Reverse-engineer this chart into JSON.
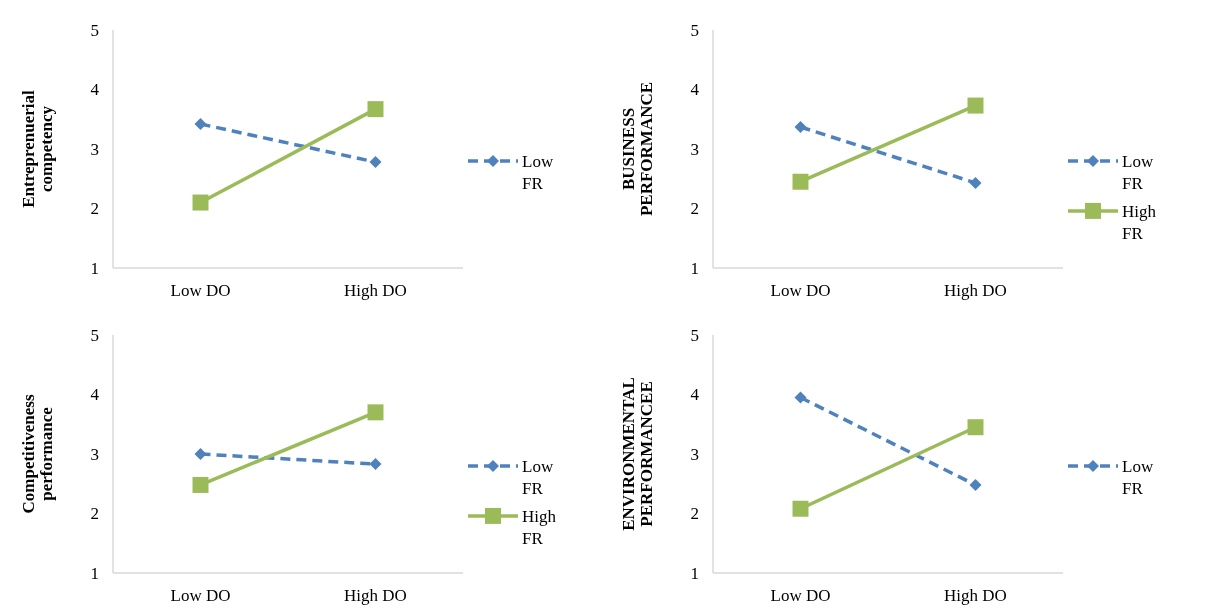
{
  "chart_data": [
    {
      "type": "line",
      "ylabel": "Entreprenuerial competency",
      "categories": [
        "Low DO",
        "High DO"
      ],
      "ylim": [
        1,
        5
      ],
      "yticks": [
        1,
        2,
        3,
        4,
        5
      ],
      "legend": "right",
      "series": [
        {
          "name": "Low FR",
          "color": "#4f81bd",
          "values": [
            3.42,
            2.78
          ],
          "line_style": "dashed",
          "marker": "diamond"
        },
        {
          "color": "#9bbb59",
          "values": [
            2.1,
            3.67
          ],
          "line_style": "solid",
          "marker": "square"
        }
      ]
    },
    {
      "type": "line",
      "ylabel": "BUSINESS PERFORMANCE",
      "categories": [
        "Low DO",
        "High DO"
      ],
      "ylim": [
        1,
        5
      ],
      "yticks": [
        1,
        2,
        3,
        4,
        5
      ],
      "legend": "right",
      "series": [
        {
          "name": "Low FR",
          "color": "#4f81bd",
          "values": [
            3.37,
            2.43
          ],
          "line_style": "dashed",
          "marker": "diamond"
        },
        {
          "name": "High FR",
          "color": "#9bbb59",
          "values": [
            2.45,
            3.73
          ],
          "line_style": "solid",
          "marker": "square"
        }
      ]
    },
    {
      "type": "line",
      "ylabel": "Competitiveness performance",
      "categories": [
        "Low DO",
        "High DO"
      ],
      "ylim": [
        1,
        5
      ],
      "yticks": [
        1,
        2,
        3,
        4,
        5
      ],
      "legend": "right",
      "series": [
        {
          "name": "Low FR",
          "color": "#4f81bd",
          "values": [
            3.0,
            2.83
          ],
          "line_style": "dashed",
          "marker": "diamond"
        },
        {
          "name": "High FR",
          "color": "#9bbb59",
          "values": [
            2.48,
            3.7
          ],
          "line_style": "solid",
          "marker": "square"
        }
      ]
    },
    {
      "type": "line",
      "ylabel": "ENVIRONMENTAL PERFORMANCEE",
      "categories": [
        "Low DO",
        "High DO"
      ],
      "ylim": [
        1,
        5
      ],
      "yticks": [
        1,
        2,
        3,
        4,
        5
      ],
      "legend": "right",
      "series": [
        {
          "name": "Low FR",
          "color": "#4f81bd",
          "values": [
            3.95,
            2.48
          ],
          "line_style": "dashed",
          "marker": "diamond"
        },
        {
          "color": "#9bbb59",
          "values": [
            2.08,
            3.45
          ],
          "line_style": "solid",
          "marker": "square"
        }
      ]
    }
  ]
}
